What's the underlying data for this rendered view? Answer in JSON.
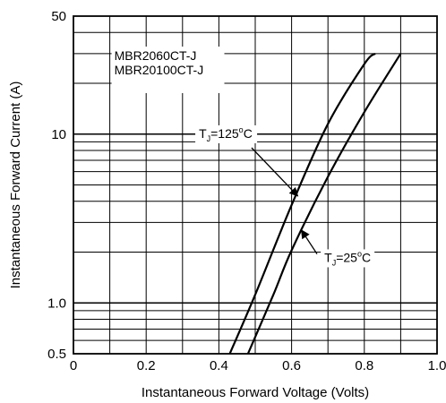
{
  "chart_data": {
    "type": "line",
    "title": "",
    "xlabel": "Instantaneous Forward Voltage (Volts)",
    "ylabel": "Instantaneous Forward Current (A)",
    "xlim": [
      0,
      1.0
    ],
    "ylim": [
      0.5,
      50
    ],
    "yscale": "log",
    "grid": true,
    "x_ticks": [
      0,
      0.2,
      0.4,
      0.6,
      0.8,
      1.0
    ],
    "x_tick_labels": [
      "0",
      "0.2",
      "0.4",
      "0.6",
      "0.8",
      "1.0"
    ],
    "y_ticks": [
      0.5,
      1.0,
      10,
      50
    ],
    "y_tick_labels": [
      "0.5",
      "1.0",
      "10",
      "50"
    ],
    "device_labels": [
      "MBR2060CT-J",
      "MBR20100CT-J"
    ],
    "series": [
      {
        "name": "TJ=125°C",
        "label": {
          "main": "T",
          "sub": "J",
          "rest": "=125",
          "deg": "o",
          "unit": "C"
        },
        "x": [
          0.43,
          0.5,
          0.6,
          0.7,
          0.8,
          0.83
        ],
        "y": [
          0.5,
          1.12,
          3.8,
          11.5,
          26,
          30
        ]
      },
      {
        "name": "TJ=25°C",
        "label": {
          "main": "T",
          "sub": "J",
          "rest": "=25",
          "deg": "o",
          "unit": "C"
        },
        "x": [
          0.48,
          0.55,
          0.6,
          0.7,
          0.8,
          0.9
        ],
        "y": [
          0.5,
          1.12,
          2.05,
          5.6,
          13.5,
          30
        ]
      }
    ]
  }
}
